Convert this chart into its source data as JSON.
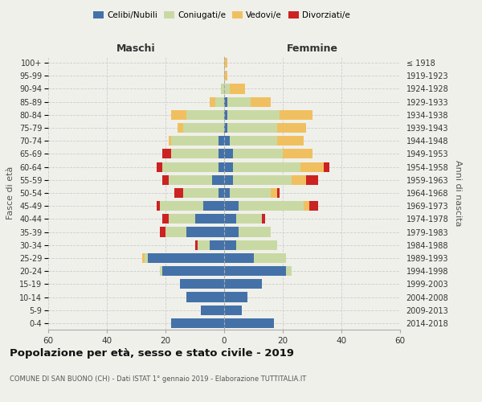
{
  "age_groups": [
    "0-4",
    "5-9",
    "10-14",
    "15-19",
    "20-24",
    "25-29",
    "30-34",
    "35-39",
    "40-44",
    "45-49",
    "50-54",
    "55-59",
    "60-64",
    "65-69",
    "70-74",
    "75-79",
    "80-84",
    "85-89",
    "90-94",
    "95-99",
    "100+"
  ],
  "birth_years": [
    "2014-2018",
    "2009-2013",
    "2004-2008",
    "1999-2003",
    "1994-1998",
    "1989-1993",
    "1984-1988",
    "1979-1983",
    "1974-1978",
    "1969-1973",
    "1964-1968",
    "1959-1963",
    "1954-1958",
    "1949-1953",
    "1944-1948",
    "1939-1943",
    "1934-1938",
    "1929-1933",
    "1924-1928",
    "1919-1923",
    "≤ 1918"
  ],
  "maschi": {
    "celibe": [
      18,
      8,
      13,
      15,
      21,
      26,
      5,
      13,
      10,
      7,
      2,
      4,
      2,
      2,
      2,
      0,
      0,
      0,
      0,
      0,
      0
    ],
    "coniugato": [
      0,
      0,
      0,
      0,
      1,
      1,
      4,
      7,
      9,
      15,
      12,
      15,
      19,
      16,
      16,
      14,
      13,
      3,
      1,
      0,
      0
    ],
    "vedovo": [
      0,
      0,
      0,
      0,
      0,
      1,
      0,
      0,
      0,
      0,
      0,
      0,
      0,
      0,
      1,
      2,
      5,
      2,
      0,
      0,
      0
    ],
    "divorziato": [
      0,
      0,
      0,
      0,
      0,
      0,
      1,
      2,
      2,
      1,
      3,
      2,
      2,
      3,
      0,
      0,
      0,
      0,
      0,
      0,
      0
    ]
  },
  "femmine": {
    "nubile": [
      17,
      6,
      8,
      13,
      21,
      10,
      4,
      5,
      4,
      5,
      2,
      3,
      3,
      3,
      2,
      1,
      1,
      1,
      0,
      0,
      0
    ],
    "coniugata": [
      0,
      0,
      0,
      0,
      2,
      11,
      14,
      11,
      9,
      22,
      14,
      20,
      23,
      17,
      16,
      17,
      18,
      8,
      2,
      0,
      0
    ],
    "vedova": [
      0,
      0,
      0,
      0,
      0,
      0,
      0,
      0,
      0,
      2,
      2,
      5,
      8,
      10,
      9,
      10,
      11,
      7,
      5,
      1,
      1
    ],
    "divorziata": [
      0,
      0,
      0,
      0,
      0,
      0,
      0,
      0,
      1,
      3,
      1,
      4,
      2,
      0,
      0,
      0,
      0,
      0,
      0,
      0,
      0
    ]
  },
  "colors": {
    "celibe": "#4472a8",
    "coniugato": "#c9d9a4",
    "vedovo": "#f0c060",
    "divorziato": "#cc2222"
  },
  "title": "Popolazione per età, sesso e stato civile - 2019",
  "subtitle": "COMUNE DI SAN BUONO (CH) - Dati ISTAT 1° gennaio 2019 - Elaborazione TUTTITALIA.IT",
  "xlabel_left": "Maschi",
  "xlabel_right": "Femmine",
  "ylabel_left": "Fasce di età",
  "ylabel_right": "Anni di nascita",
  "xlim": 60,
  "legend_labels": [
    "Celibi/Nubili",
    "Coniugati/e",
    "Vedovi/e",
    "Divorziati/e"
  ],
  "bg_color": "#f0f0eb"
}
